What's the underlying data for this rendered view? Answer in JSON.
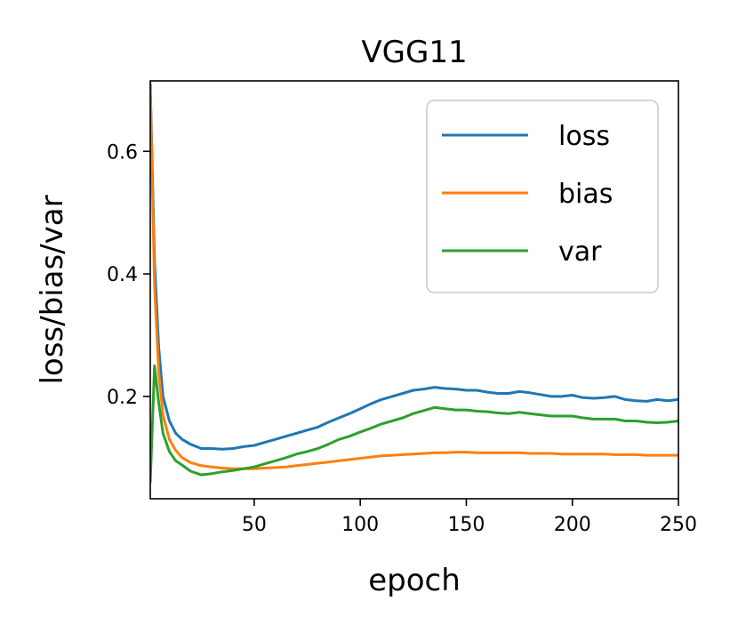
{
  "chart_data": {
    "type": "line",
    "title": "VGG11",
    "xlabel": "epoch",
    "ylabel": "loss/bias/var",
    "xlim": [
      1,
      250
    ],
    "ylim": [
      0.033,
      0.715
    ],
    "xticks": [
      50,
      100,
      150,
      200,
      250
    ],
    "xtick_labels": [
      "50",
      "100",
      "150",
      "200",
      "250"
    ],
    "yticks": [
      0.2,
      0.4,
      0.6
    ],
    "ytick_labels": [
      "0.2",
      "0.4",
      "0.6"
    ],
    "grid": false,
    "legend_position": "top-right",
    "series": [
      {
        "name": "loss",
        "color": "#1f77b4",
        "x": [
          1,
          3,
          5,
          7,
          10,
          13,
          16,
          20,
          25,
          30,
          35,
          40,
          45,
          50,
          55,
          60,
          65,
          70,
          75,
          80,
          85,
          90,
          95,
          100,
          105,
          110,
          115,
          120,
          125,
          130,
          135,
          140,
          145,
          150,
          155,
          160,
          165,
          170,
          175,
          180,
          185,
          190,
          195,
          200,
          205,
          210,
          215,
          220,
          225,
          230,
          235,
          240,
          245,
          250
        ],
        "values": [
          0.71,
          0.42,
          0.28,
          0.2,
          0.16,
          0.14,
          0.13,
          0.122,
          0.115,
          0.115,
          0.114,
          0.115,
          0.118,
          0.12,
          0.125,
          0.13,
          0.135,
          0.14,
          0.145,
          0.15,
          0.158,
          0.165,
          0.172,
          0.18,
          0.188,
          0.195,
          0.2,
          0.205,
          0.21,
          0.212,
          0.215,
          0.213,
          0.212,
          0.21,
          0.21,
          0.207,
          0.205,
          0.205,
          0.208,
          0.206,
          0.203,
          0.2,
          0.2,
          0.202,
          0.198,
          0.197,
          0.198,
          0.2,
          0.195,
          0.193,
          0.192,
          0.195,
          0.193,
          0.195
        ]
      },
      {
        "name": "bias",
        "color": "#ff7f0e",
        "x": [
          1,
          3,
          5,
          7,
          10,
          13,
          16,
          20,
          25,
          30,
          35,
          40,
          45,
          50,
          55,
          60,
          65,
          70,
          75,
          80,
          85,
          90,
          95,
          100,
          105,
          110,
          115,
          120,
          125,
          130,
          135,
          140,
          145,
          150,
          155,
          160,
          165,
          170,
          175,
          180,
          185,
          190,
          195,
          200,
          205,
          210,
          215,
          220,
          225,
          230,
          235,
          240,
          245,
          250
        ],
        "values": [
          0.7,
          0.38,
          0.24,
          0.17,
          0.13,
          0.112,
          0.1,
          0.092,
          0.087,
          0.085,
          0.083,
          0.082,
          0.082,
          0.082,
          0.083,
          0.084,
          0.085,
          0.087,
          0.089,
          0.091,
          0.093,
          0.095,
          0.097,
          0.099,
          0.101,
          0.103,
          0.104,
          0.105,
          0.106,
          0.107,
          0.108,
          0.108,
          0.109,
          0.109,
          0.108,
          0.108,
          0.108,
          0.108,
          0.108,
          0.107,
          0.107,
          0.107,
          0.106,
          0.106,
          0.106,
          0.106,
          0.106,
          0.105,
          0.105,
          0.105,
          0.104,
          0.104,
          0.104,
          0.104
        ]
      },
      {
        "name": "var",
        "color": "#2ca02c",
        "x": [
          1,
          3,
          5,
          7,
          10,
          13,
          16,
          20,
          25,
          30,
          35,
          40,
          45,
          50,
          55,
          60,
          65,
          70,
          75,
          80,
          85,
          90,
          95,
          100,
          105,
          110,
          115,
          120,
          125,
          130,
          135,
          140,
          145,
          150,
          155,
          160,
          165,
          170,
          175,
          180,
          185,
          190,
          195,
          200,
          205,
          210,
          215,
          220,
          225,
          230,
          235,
          240,
          245,
          250
        ],
        "values": [
          0.06,
          0.25,
          0.19,
          0.14,
          0.11,
          0.095,
          0.088,
          0.078,
          0.072,
          0.074,
          0.077,
          0.079,
          0.082,
          0.085,
          0.09,
          0.095,
          0.1,
          0.106,
          0.11,
          0.115,
          0.122,
          0.13,
          0.135,
          0.142,
          0.148,
          0.155,
          0.16,
          0.165,
          0.172,
          0.177,
          0.182,
          0.18,
          0.178,
          0.178,
          0.176,
          0.175,
          0.173,
          0.172,
          0.174,
          0.172,
          0.17,
          0.168,
          0.168,
          0.168,
          0.165,
          0.163,
          0.163,
          0.163,
          0.16,
          0.16,
          0.158,
          0.157,
          0.158,
          0.16
        ]
      }
    ]
  }
}
